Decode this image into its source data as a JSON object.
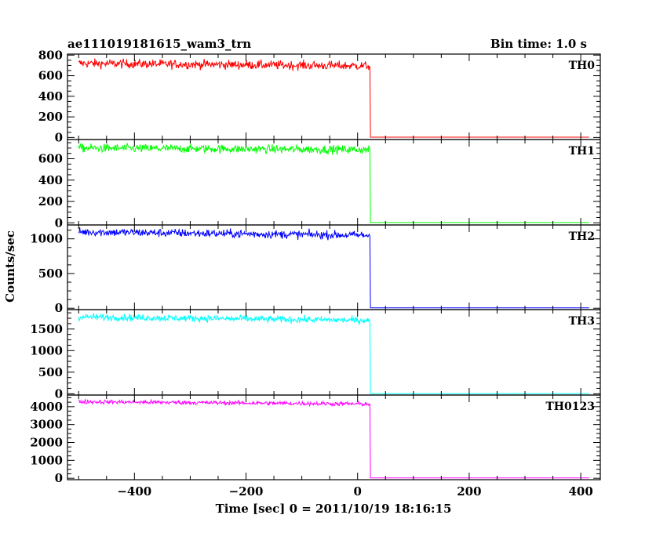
{
  "chart_data": {
    "type": "line",
    "title": "ae111019181615_wam3_trn",
    "bin_time_label": "Bin time: 1.0 s",
    "xlabel": "Time [sec] 0 = 2011/10/19 18:16:15",
    "ylabel": "Counts/sec",
    "xlim": [
      -520,
      435
    ],
    "x_ticks": [
      -400,
      -200,
      0,
      200,
      400
    ],
    "x_tick_labels": [
      "−400",
      "−200",
      "0",
      "200",
      "400"
    ],
    "step_time": 22,
    "data_start": -500,
    "data_end": 415,
    "panels": [
      {
        "name": "TH0",
        "color": "#ff0000",
        "ylim": [
          -20,
          810
        ],
        "y_ticks": [
          0,
          200,
          400,
          600,
          800
        ],
        "y_tick_labels": [
          "0",
          "200",
          "400",
          "600",
          "800"
        ],
        "level_start": 720,
        "level_end": 695,
        "noise": 22,
        "after": 3
      },
      {
        "name": "TH1",
        "color": "#00ff00",
        "ylim": [
          -20,
          780
        ],
        "y_ticks": [
          0,
          200,
          400,
          600
        ],
        "y_tick_labels": [
          "0",
          "200",
          "400",
          "600"
        ],
        "level_start": 700,
        "level_end": 685,
        "noise": 20,
        "after": 3
      },
      {
        "name": "TH2",
        "color": "#0000ff",
        "ylim": [
          -20,
          1200
        ],
        "y_ticks": [
          0,
          500,
          1000
        ],
        "y_tick_labels": [
          "0",
          "500",
          "1000"
        ],
        "level_start": 1100,
        "level_end": 1050,
        "noise": 30,
        "after": 5
      },
      {
        "name": "TH3",
        "color": "#00ffff",
        "ylim": [
          -30,
          1950
        ],
        "y_ticks": [
          0,
          500,
          1000,
          1500
        ],
        "y_tick_labels": [
          "0",
          "500",
          "1000",
          "1500"
        ],
        "level_start": 1780,
        "level_end": 1700,
        "noise": 40,
        "after": 5
      },
      {
        "name": "TH0123",
        "color": "#ff00ff",
        "ylim": [
          -80,
          4650
        ],
        "y_ticks": [
          0,
          1000,
          2000,
          3000,
          4000
        ],
        "y_tick_labels": [
          "0",
          "1000",
          "2000",
          "3000",
          "4000"
        ],
        "level_start": 4280,
        "level_end": 4150,
        "noise": 60,
        "after": 15
      }
    ]
  }
}
